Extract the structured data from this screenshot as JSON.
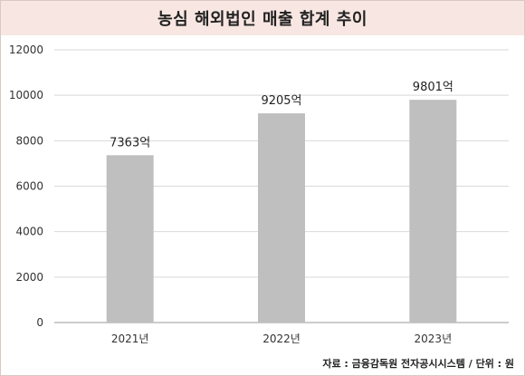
{
  "header": {
    "title": "농심 해외법인 매출 합계 추이"
  },
  "chart_data": {
    "type": "bar",
    "title": "농심 해외법인 매출 합계 추이",
    "categories": [
      "2021년",
      "2022년",
      "2023년"
    ],
    "values": [
      7363,
      9205,
      9801
    ],
    "data_labels": [
      "7363억",
      "9205억",
      "9801억"
    ],
    "ylim": [
      0,
      12000
    ],
    "yticks": [
      "0",
      "2000",
      "4000",
      "6000",
      "8000",
      "10000",
      "12000"
    ],
    "grid": true,
    "bar_color": "#bfbfbf"
  },
  "footer": {
    "source": "자료 : 금융감독원 전자공시시스템 / 단위 : 원"
  }
}
